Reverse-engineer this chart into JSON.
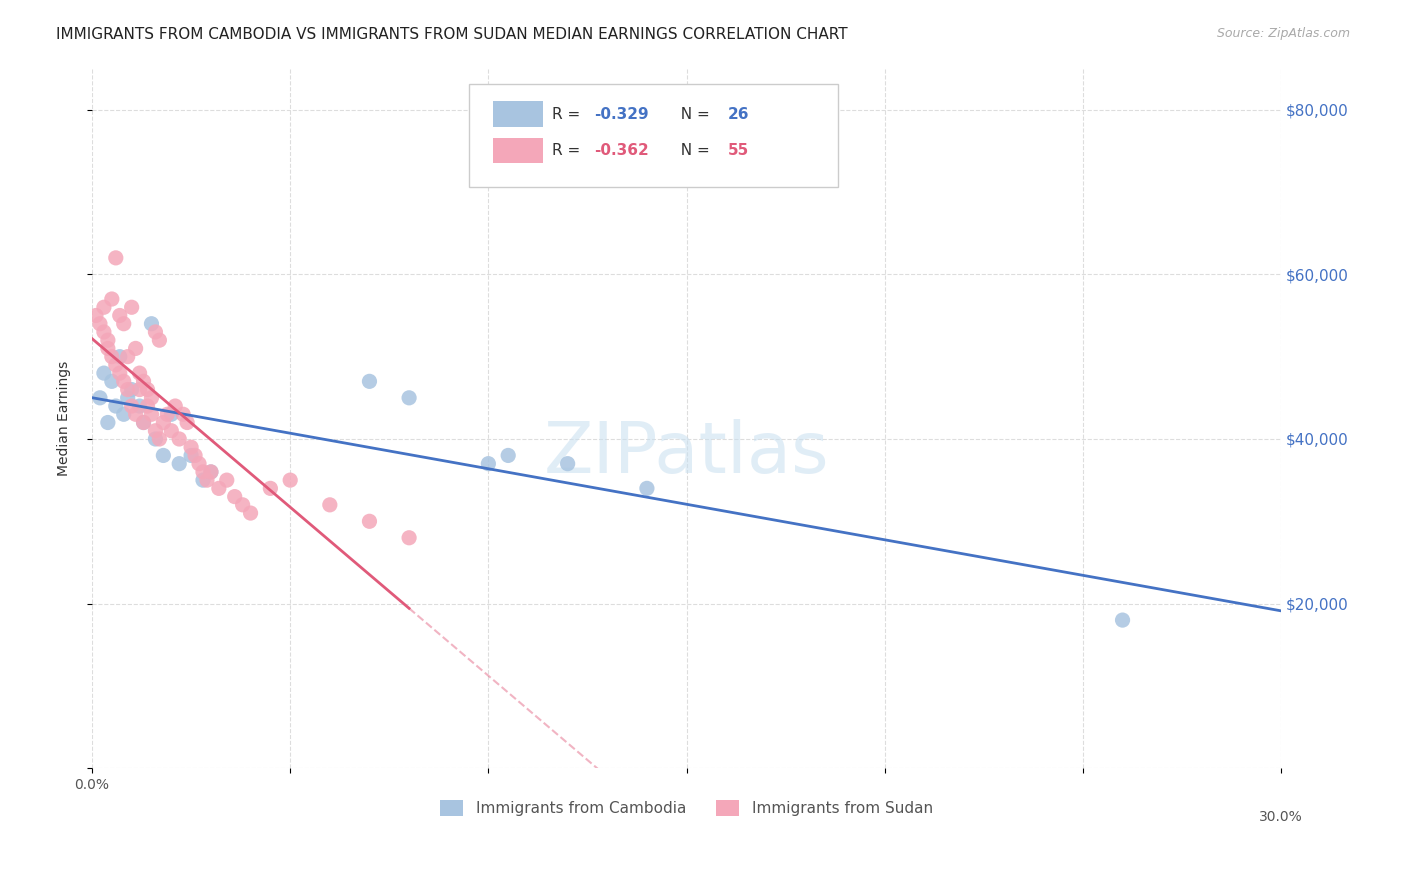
{
  "title": "IMMIGRANTS FROM CAMBODIA VS IMMIGRANTS FROM SUDAN MEDIAN EARNINGS CORRELATION CHART",
  "source": "Source: ZipAtlas.com",
  "ylabel": "Median Earnings",
  "xlim": [
    0.0,
    0.3
  ],
  "ylim": [
    0,
    85000
  ],
  "cambodia_color": "#a8c4e0",
  "sudan_color": "#f4a7b9",
  "cambodia_line_color": "#4472c4",
  "sudan_line_color": "#e05a7a",
  "right_tick_color": "#4472c4",
  "background_color": "#ffffff",
  "cambodia_R": -0.329,
  "cambodia_N": 26,
  "sudan_R": -0.362,
  "sudan_N": 55,
  "cam_x": [
    0.002,
    0.003,
    0.004,
    0.005,
    0.006,
    0.007,
    0.008,
    0.009,
    0.01,
    0.012,
    0.013,
    0.015,
    0.016,
    0.018,
    0.02,
    0.022,
    0.025,
    0.028,
    0.03,
    0.07,
    0.08,
    0.1,
    0.105,
    0.12,
    0.14,
    0.26
  ],
  "cam_y": [
    45000,
    48000,
    42000,
    47000,
    44000,
    50000,
    43000,
    45000,
    46000,
    44000,
    42000,
    54000,
    40000,
    38000,
    43000,
    37000,
    38000,
    35000,
    36000,
    47000,
    45000,
    37000,
    38000,
    37000,
    34000,
    18000
  ],
  "sud_x": [
    0.001,
    0.002,
    0.003,
    0.003,
    0.004,
    0.004,
    0.005,
    0.005,
    0.006,
    0.006,
    0.007,
    0.007,
    0.008,
    0.008,
    0.009,
    0.009,
    0.01,
    0.01,
    0.011,
    0.011,
    0.012,
    0.012,
    0.013,
    0.013,
    0.014,
    0.014,
    0.015,
    0.015,
    0.016,
    0.016,
    0.017,
    0.017,
    0.018,
    0.019,
    0.02,
    0.021,
    0.022,
    0.023,
    0.024,
    0.025,
    0.026,
    0.027,
    0.028,
    0.029,
    0.03,
    0.032,
    0.034,
    0.036,
    0.038,
    0.04,
    0.045,
    0.05,
    0.06,
    0.07,
    0.08
  ],
  "sud_y": [
    55000,
    54000,
    53000,
    56000,
    51000,
    52000,
    50000,
    57000,
    62000,
    49000,
    55000,
    48000,
    47000,
    54000,
    46000,
    50000,
    56000,
    44000,
    51000,
    43000,
    48000,
    46000,
    47000,
    42000,
    44000,
    46000,
    45000,
    43000,
    53000,
    41000,
    52000,
    40000,
    42000,
    43000,
    41000,
    44000,
    40000,
    43000,
    42000,
    39000,
    38000,
    37000,
    36000,
    35000,
    36000,
    34000,
    35000,
    33000,
    32000,
    31000,
    34000,
    35000,
    32000,
    30000,
    28000
  ]
}
